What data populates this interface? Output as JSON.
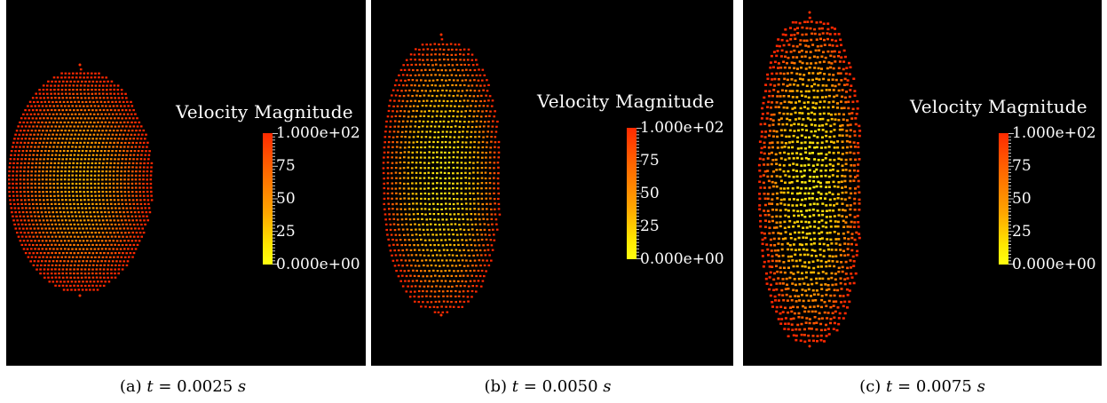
{
  "panels": [
    {
      "id": "a",
      "legend_title": "Velocity Magnitude",
      "colorbar_labels": [
        "1.000e+02",
        "75",
        "50",
        "25",
        "0.000e+00"
      ],
      "caption": {
        "label": "(a)",
        "var": "t",
        "eq": "=",
        "value": "0.0025",
        "unit": "s"
      }
    },
    {
      "id": "b",
      "legend_title": "Velocity Magnitude",
      "colorbar_labels": [
        "1.000e+02",
        "75",
        "50",
        "25",
        "0.000e+00"
      ],
      "caption": {
        "label": "(b)",
        "var": "t",
        "eq": "=",
        "value": "0.0050",
        "unit": "s"
      }
    },
    {
      "id": "c",
      "legend_title": "Velocity Magnitude",
      "colorbar_labels": [
        "1.000e+02",
        "75",
        "50",
        "25",
        "0.000e+00"
      ],
      "caption": {
        "label": "(c)",
        "var": "t",
        "eq": "=",
        "value": "0.0075",
        "unit": "s"
      }
    }
  ],
  "colors": {
    "background": "#000000",
    "colormap_high": "#ff2a00",
    "colormap_mid": "#ffa400",
    "colormap_low": "#ffff10"
  },
  "colorbar_range": [
    0,
    100
  ]
}
